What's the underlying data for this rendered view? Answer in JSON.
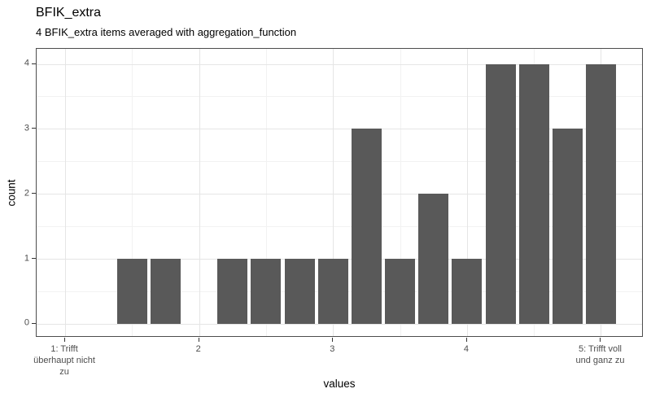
{
  "chart_data": {
    "type": "bar",
    "title": "BFIK_extra",
    "subtitle": "4 BFIK_extra items averaged with aggregation_function",
    "xlabel": "values",
    "ylabel": "count",
    "bin_width": 0.25,
    "bar_rel_width": 0.9,
    "x": [
      1.5,
      1.75,
      2.25,
      2.5,
      2.75,
      3.0,
      3.25,
      3.5,
      3.75,
      4.0,
      4.25,
      4.5,
      4.75,
      5.0
    ],
    "values": [
      1,
      1,
      1,
      1,
      1,
      1,
      3,
      1,
      2,
      1,
      4,
      4,
      3,
      4
    ],
    "x_ticks": [
      {
        "value": 1,
        "label": "1: Trifft\nüberhaupt nicht\nzu"
      },
      {
        "value": 2,
        "label": "2"
      },
      {
        "value": 3,
        "label": "3"
      },
      {
        "value": 4,
        "label": "4"
      },
      {
        "value": 5,
        "label": "5: Trifft voll\nund ganz zu"
      }
    ],
    "y_ticks": [
      {
        "value": 0,
        "label": "0"
      },
      {
        "value": 1,
        "label": "1"
      },
      {
        "value": 2,
        "label": "2"
      },
      {
        "value": 3,
        "label": "3"
      },
      {
        "value": 4,
        "label": "4"
      }
    ],
    "x_minor": [
      1.5,
      2.5,
      3.5,
      4.5
    ],
    "y_minor": [
      0.5,
      1.5,
      2.5,
      3.5
    ],
    "x_range": [
      0.787,
      5.319
    ],
    "y_range": [
      -0.213,
      4.232
    ],
    "grid": "major+minor",
    "legend": "none",
    "colors": {
      "bar": "#595959",
      "grid_major": "#e5e5e5",
      "grid_minor": "#f2f2f2",
      "panel_border": "#4d4d4d",
      "panel_bg": "#ffffff",
      "tick_mark": "#333333",
      "tick_label": "#4d4d4d",
      "text": "#000000"
    }
  }
}
